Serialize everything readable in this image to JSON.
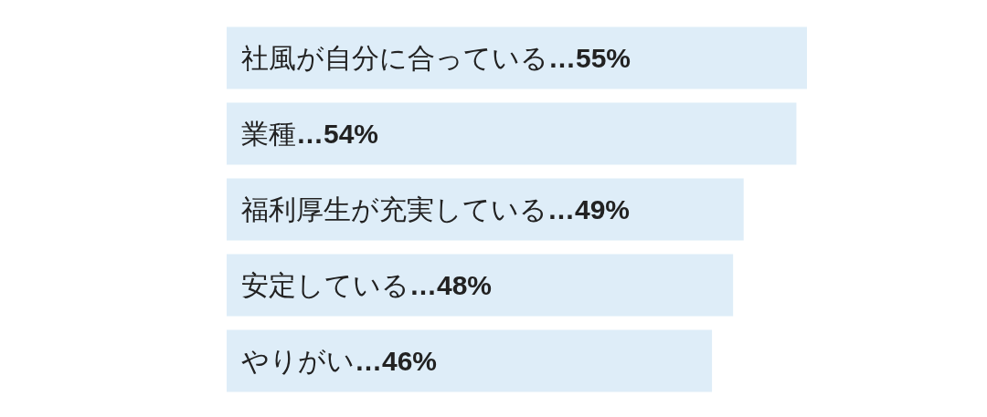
{
  "chart_data": {
    "type": "bar",
    "orientation": "horizontal",
    "categories": [
      "社風が自分に合っている",
      "業種",
      "福利厚生が充実している",
      "安定している",
      "やりがい"
    ],
    "values": [
      55,
      54,
      49,
      48,
      46
    ],
    "value_labels": [
      "…55%",
      "…54%",
      "…49%",
      "…48%",
      "…46%"
    ],
    "color": "#deedf8"
  }
}
